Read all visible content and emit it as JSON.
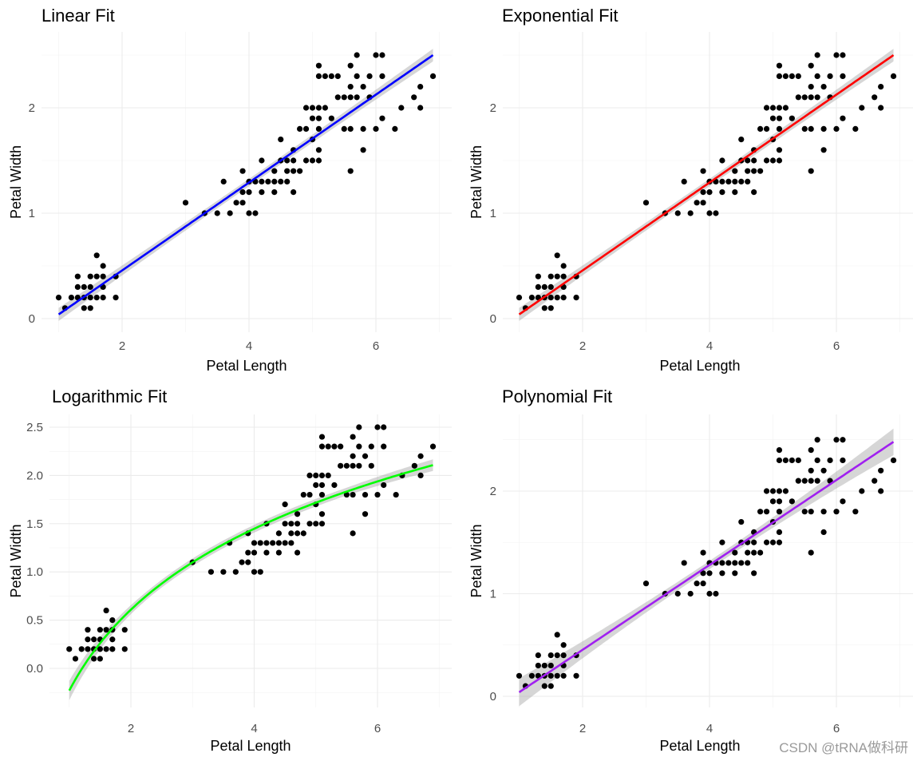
{
  "watermark": "CSDN @tRNA做科研",
  "chart_data": [
    {
      "type": "scatter",
      "title": "Linear Fit",
      "xlabel": "Petal Length",
      "ylabel": "Petal Width",
      "xlim": [
        0.7,
        7.2
      ],
      "ylim": [
        -0.12,
        2.62
      ],
      "xticks": [
        2,
        4,
        6
      ],
      "xtick_labels": [
        "2",
        "4",
        "6"
      ],
      "yticks": [
        0,
        1,
        2
      ],
      "ytick_labels": [
        "0",
        "1",
        "2"
      ],
      "grid": true,
      "fit": {
        "method": "linear",
        "color": "#0000FF",
        "confidence_band": true,
        "curve": [
          [
            1.0,
            0.04
          ],
          [
            6.9,
            2.5
          ]
        ],
        "se": 0.05
      }
    },
    {
      "type": "scatter",
      "title": "Exponential Fit",
      "xlabel": "Petal Length",
      "ylabel": "Petal Width",
      "xlim": [
        0.7,
        7.2
      ],
      "ylim": [
        -0.12,
        2.62
      ],
      "xticks": [
        2,
        4,
        6
      ],
      "xtick_labels": [
        "2",
        "4",
        "6"
      ],
      "yticks": [
        0,
        1,
        2
      ],
      "ytick_labels": [
        "0",
        "1",
        "2"
      ],
      "grid": true,
      "fit": {
        "method": "exponential",
        "color": "#FF0000",
        "confidence_band": true,
        "curve": [
          [
            1.0,
            0.04
          ],
          [
            6.9,
            2.5
          ]
        ],
        "se": 0.05
      }
    },
    {
      "type": "scatter",
      "title": "Logarithmic Fit",
      "xlabel": "Petal Length",
      "ylabel": "Petal Width",
      "xlim": [
        0.7,
        7.2
      ],
      "ylim": [
        -0.42,
        2.62
      ],
      "xticks": [
        2,
        4,
        6
      ],
      "xtick_labels": [
        "2",
        "4",
        "6"
      ],
      "yticks": [
        0.0,
        0.5,
        1.0,
        1.5,
        2.0,
        2.5
      ],
      "ytick_labels": [
        "0.0",
        "0.5",
        "1.0",
        "1.5",
        "2.0",
        "2.5"
      ],
      "grid": true,
      "fit": {
        "method": "logarithmic",
        "color": "#00FF00",
        "confidence_band": true,
        "a": -0.23,
        "b": 1.21,
        "se": 0.05
      }
    },
    {
      "type": "scatter",
      "title": "Polynomial Fit",
      "xlabel": "Petal Length",
      "ylabel": "Petal Width",
      "xlim": [
        0.7,
        7.2
      ],
      "ylim": [
        -0.12,
        2.62
      ],
      "xticks": [
        2,
        4,
        6
      ],
      "xtick_labels": [
        "2",
        "4",
        "6"
      ],
      "yticks": [
        0,
        1,
        2
      ],
      "ytick_labels": [
        "0",
        "1",
        "2"
      ],
      "grid": true,
      "fit": {
        "method": "polynomial",
        "color": "#A020F0",
        "confidence_band": true,
        "curve": [
          [
            1.0,
            0.04
          ],
          [
            4.0,
            1.28
          ],
          [
            6.9,
            2.48
          ]
        ],
        "se": 0.06,
        "se_end": 0.12
      }
    }
  ],
  "points": [
    [
      1.0,
      0.2
    ],
    [
      1.1,
      0.1
    ],
    [
      1.2,
      0.2
    ],
    [
      1.3,
      0.2
    ],
    [
      1.3,
      0.3
    ],
    [
      1.3,
      0.4
    ],
    [
      1.4,
      0.1
    ],
    [
      1.4,
      0.2
    ],
    [
      1.4,
      0.3
    ],
    [
      1.5,
      0.1
    ],
    [
      1.5,
      0.2
    ],
    [
      1.5,
      0.3
    ],
    [
      1.5,
      0.4
    ],
    [
      1.6,
      0.2
    ],
    [
      1.6,
      0.4
    ],
    [
      1.6,
      0.6
    ],
    [
      1.7,
      0.2
    ],
    [
      1.7,
      0.3
    ],
    [
      1.7,
      0.4
    ],
    [
      1.7,
      0.5
    ],
    [
      1.9,
      0.2
    ],
    [
      1.9,
      0.4
    ],
    [
      3.0,
      1.1
    ],
    [
      3.3,
      1.0
    ],
    [
      3.5,
      1.0
    ],
    [
      3.6,
      1.3
    ],
    [
      3.7,
      1.0
    ],
    [
      3.8,
      1.1
    ],
    [
      3.9,
      1.1
    ],
    [
      3.9,
      1.2
    ],
    [
      3.9,
      1.4
    ],
    [
      4.0,
      1.0
    ],
    [
      4.0,
      1.2
    ],
    [
      4.0,
      1.3
    ],
    [
      4.1,
      1.0
    ],
    [
      4.1,
      1.3
    ],
    [
      4.2,
      1.2
    ],
    [
      4.2,
      1.3
    ],
    [
      4.2,
      1.5
    ],
    [
      4.3,
      1.3
    ],
    [
      4.4,
      1.2
    ],
    [
      4.4,
      1.3
    ],
    [
      4.4,
      1.4
    ],
    [
      4.5,
      1.3
    ],
    [
      4.5,
      1.5
    ],
    [
      4.5,
      1.7
    ],
    [
      4.6,
      1.3
    ],
    [
      4.6,
      1.4
    ],
    [
      4.6,
      1.5
    ],
    [
      4.7,
      1.2
    ],
    [
      4.7,
      1.4
    ],
    [
      4.7,
      1.5
    ],
    [
      4.7,
      1.6
    ],
    [
      4.8,
      1.4
    ],
    [
      4.8,
      1.8
    ],
    [
      4.9,
      1.5
    ],
    [
      4.9,
      1.8
    ],
    [
      4.9,
      2.0
    ],
    [
      5.0,
      1.5
    ],
    [
      5.0,
      1.7
    ],
    [
      5.0,
      1.9
    ],
    [
      5.0,
      2.0
    ],
    [
      5.1,
      1.5
    ],
    [
      5.1,
      1.6
    ],
    [
      5.1,
      1.8
    ],
    [
      5.1,
      1.9
    ],
    [
      5.1,
      2.0
    ],
    [
      5.1,
      2.3
    ],
    [
      5.1,
      2.4
    ],
    [
      5.2,
      2.0
    ],
    [
      5.2,
      2.3
    ],
    [
      5.3,
      1.9
    ],
    [
      5.3,
      2.3
    ],
    [
      5.4,
      2.1
    ],
    [
      5.4,
      2.3
    ],
    [
      5.5,
      1.8
    ],
    [
      5.5,
      2.1
    ],
    [
      5.6,
      1.4
    ],
    [
      5.6,
      1.8
    ],
    [
      5.6,
      2.1
    ],
    [
      5.6,
      2.2
    ],
    [
      5.6,
      2.4
    ],
    [
      5.7,
      2.1
    ],
    [
      5.7,
      2.3
    ],
    [
      5.7,
      2.5
    ],
    [
      5.8,
      1.6
    ],
    [
      5.8,
      1.8
    ],
    [
      5.8,
      2.2
    ],
    [
      5.9,
      2.1
    ],
    [
      5.9,
      2.3
    ],
    [
      6.0,
      1.8
    ],
    [
      6.0,
      2.5
    ],
    [
      6.1,
      1.9
    ],
    [
      6.1,
      2.3
    ],
    [
      6.1,
      2.5
    ],
    [
      6.3,
      1.8
    ],
    [
      6.4,
      2.0
    ],
    [
      6.6,
      2.1
    ],
    [
      6.7,
      2.0
    ],
    [
      6.7,
      2.2
    ],
    [
      6.9,
      2.3
    ]
  ]
}
